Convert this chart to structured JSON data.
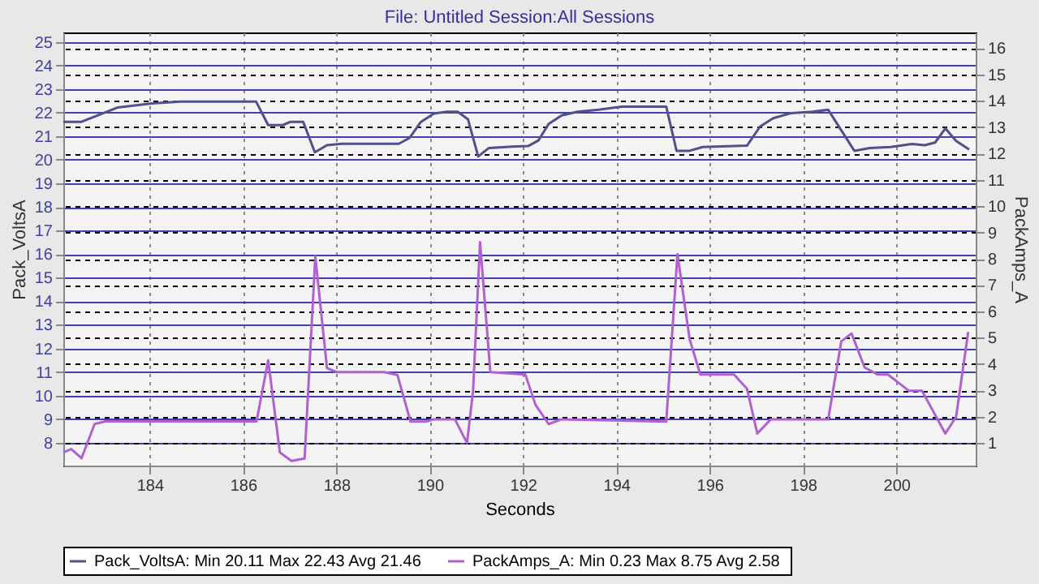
{
  "chart_data": {
    "type": "line",
    "title": "File: Untitled   Session:All Sessions",
    "xlabel": "Seconds",
    "ylabel": "Pack_VoltsA",
    "y2label": "PackAmps_A",
    "xlim": [
      182.15,
      201.7
    ],
    "xticks": [
      184,
      186,
      188,
      190,
      192,
      194,
      196,
      198,
      200
    ],
    "ylim": [
      7.03,
      25.4
    ],
    "yticks": [
      8,
      9,
      10,
      11,
      12,
      13,
      14,
      15,
      16,
      17,
      18,
      19,
      20,
      21,
      22,
      23,
      24,
      25
    ],
    "y2lim": [
      0.14,
      16.6
    ],
    "y2ticks": [
      1,
      2,
      3,
      4,
      5,
      6,
      7,
      8,
      9,
      10,
      11,
      12,
      13,
      14,
      15,
      16
    ],
    "grid": true,
    "legend": "bottom",
    "series": [
      {
        "name": "Pack_VoltsA:  Min 20.11 Max 22.43 Avg 21.46",
        "color": "#50508a",
        "x": [
          182.15,
          182.54,
          183.32,
          184.05,
          184.67,
          186.28,
          186.54,
          186.85,
          187.02,
          187.29,
          187.54,
          187.8,
          188.12,
          189.34,
          189.57,
          189.81,
          190.09,
          190.37,
          190.6,
          190.82,
          191.04,
          191.27,
          191.77,
          192.11,
          192.33,
          192.55,
          192.83,
          193.17,
          193.62,
          194.12,
          195.07,
          195.29,
          195.57,
          195.85,
          196.8,
          197.08,
          197.36,
          197.75,
          198.2,
          198.54,
          199.1,
          199.43,
          199.88,
          200.33,
          200.61,
          200.83,
          201.05,
          201.28,
          201.56
        ],
        "values": [
          21.61,
          21.61,
          22.22,
          22.39,
          22.47,
          22.47,
          21.47,
          21.47,
          21.61,
          21.61,
          20.32,
          20.62,
          20.68,
          20.68,
          20.93,
          21.6,
          21.96,
          22.04,
          22.04,
          21.72,
          20.14,
          20.5,
          20.56,
          20.58,
          20.82,
          21.52,
          21.88,
          22.04,
          22.12,
          22.25,
          22.25,
          20.38,
          20.38,
          20.54,
          20.6,
          21.41,
          21.76,
          21.98,
          22.04,
          22.12,
          20.38,
          20.5,
          20.54,
          20.67,
          20.62,
          20.73,
          21.33,
          20.8,
          20.44
        ]
      },
      {
        "name": "PackAmps_A:  Min 0.23 Max 8.75 Avg 2.58",
        "color": "#b060d0",
        "axis": "y2",
        "x": [
          182.15,
          182.32,
          182.54,
          182.82,
          183.05,
          186.29,
          186.54,
          186.79,
          187.04,
          187.32,
          187.55,
          187.8,
          188.02,
          189.03,
          189.31,
          189.59,
          189.92,
          190.09,
          190.54,
          190.8,
          190.93,
          191.08,
          191.3,
          192.05,
          192.27,
          192.55,
          192.83,
          195.07,
          195.31,
          195.57,
          195.8,
          196.52,
          196.8,
          197.02,
          197.31,
          198.54,
          198.82,
          199.04,
          199.32,
          199.6,
          199.82,
          200.27,
          200.55,
          201.05,
          201.28,
          201.54
        ],
        "values": [
          0.64,
          0.77,
          0.42,
          1.72,
          1.82,
          1.82,
          4.14,
          0.64,
          0.32,
          0.41,
          8.09,
          3.84,
          3.69,
          3.69,
          3.58,
          1.81,
          1.81,
          1.9,
          1.9,
          1.0,
          2.98,
          8.63,
          3.69,
          3.6,
          2.44,
          1.72,
          1.9,
          1.81,
          8.18,
          4.95,
          3.6,
          3.6,
          3.06,
          1.36,
          1.9,
          1.9,
          4.86,
          5.16,
          3.87,
          3.6,
          3.6,
          2.98,
          2.98,
          1.36,
          1.99,
          5.22
        ]
      }
    ]
  }
}
